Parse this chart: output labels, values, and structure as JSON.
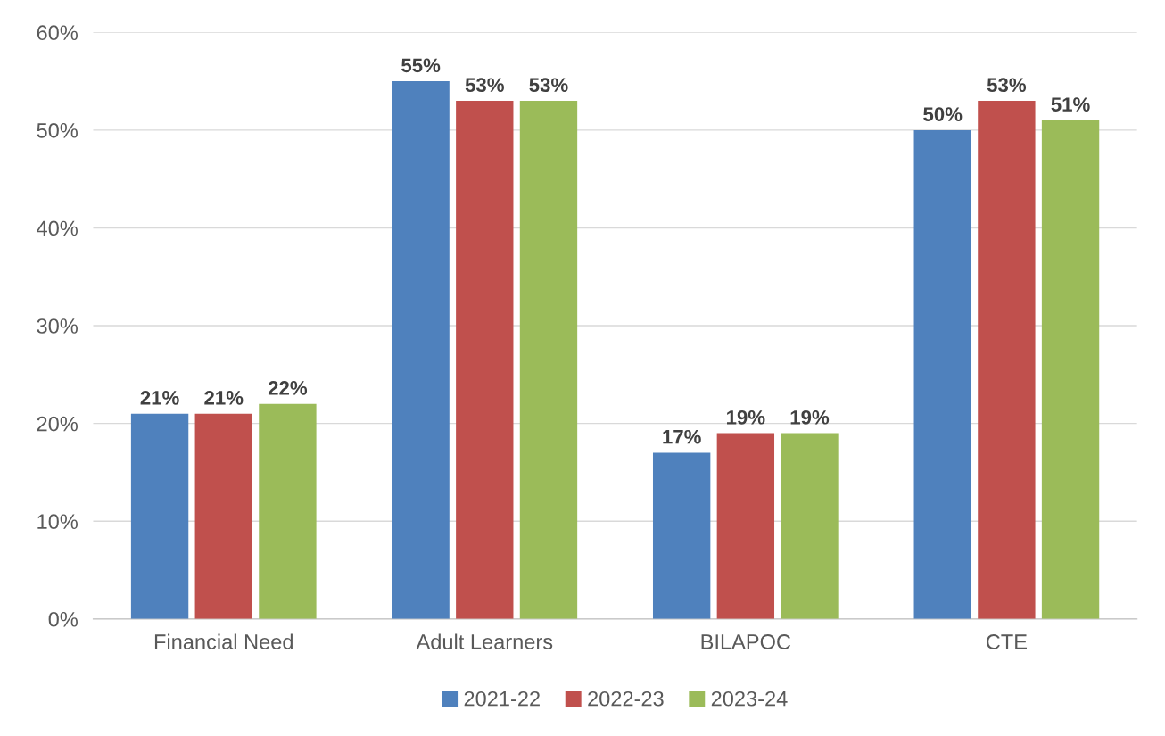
{
  "chart_data": {
    "type": "bar",
    "categories": [
      "Financial Need",
      "Adult Learners",
      "BILAPOC",
      "CTE"
    ],
    "series": [
      {
        "name": "2021-22",
        "color": "#4f81bd",
        "values": [
          21,
          55,
          17,
          50
        ],
        "value_labels": [
          "21%",
          "55%",
          "17%",
          "50%"
        ]
      },
      {
        "name": "2022-23",
        "color": "#c0504d",
        "values": [
          21,
          53,
          19,
          53
        ],
        "value_labels": [
          "21%",
          "53%",
          "19%",
          "53%"
        ]
      },
      {
        "name": "2023-24",
        "color": "#9bbb59",
        "values": [
          22,
          53,
          19,
          51
        ],
        "value_labels": [
          "22%",
          "53%",
          "19%",
          "51%"
        ]
      }
    ],
    "ylim": [
      0,
      60
    ],
    "yticks": [
      {
        "value": 0,
        "label": "0%"
      },
      {
        "value": 10,
        "label": "10%"
      },
      {
        "value": 20,
        "label": "20%"
      },
      {
        "value": 30,
        "label": "30%"
      },
      {
        "value": 40,
        "label": "40%"
      },
      {
        "value": 50,
        "label": "50%"
      },
      {
        "value": 60,
        "label": "60%"
      }
    ],
    "grid": "y",
    "legend": "bottom"
  }
}
